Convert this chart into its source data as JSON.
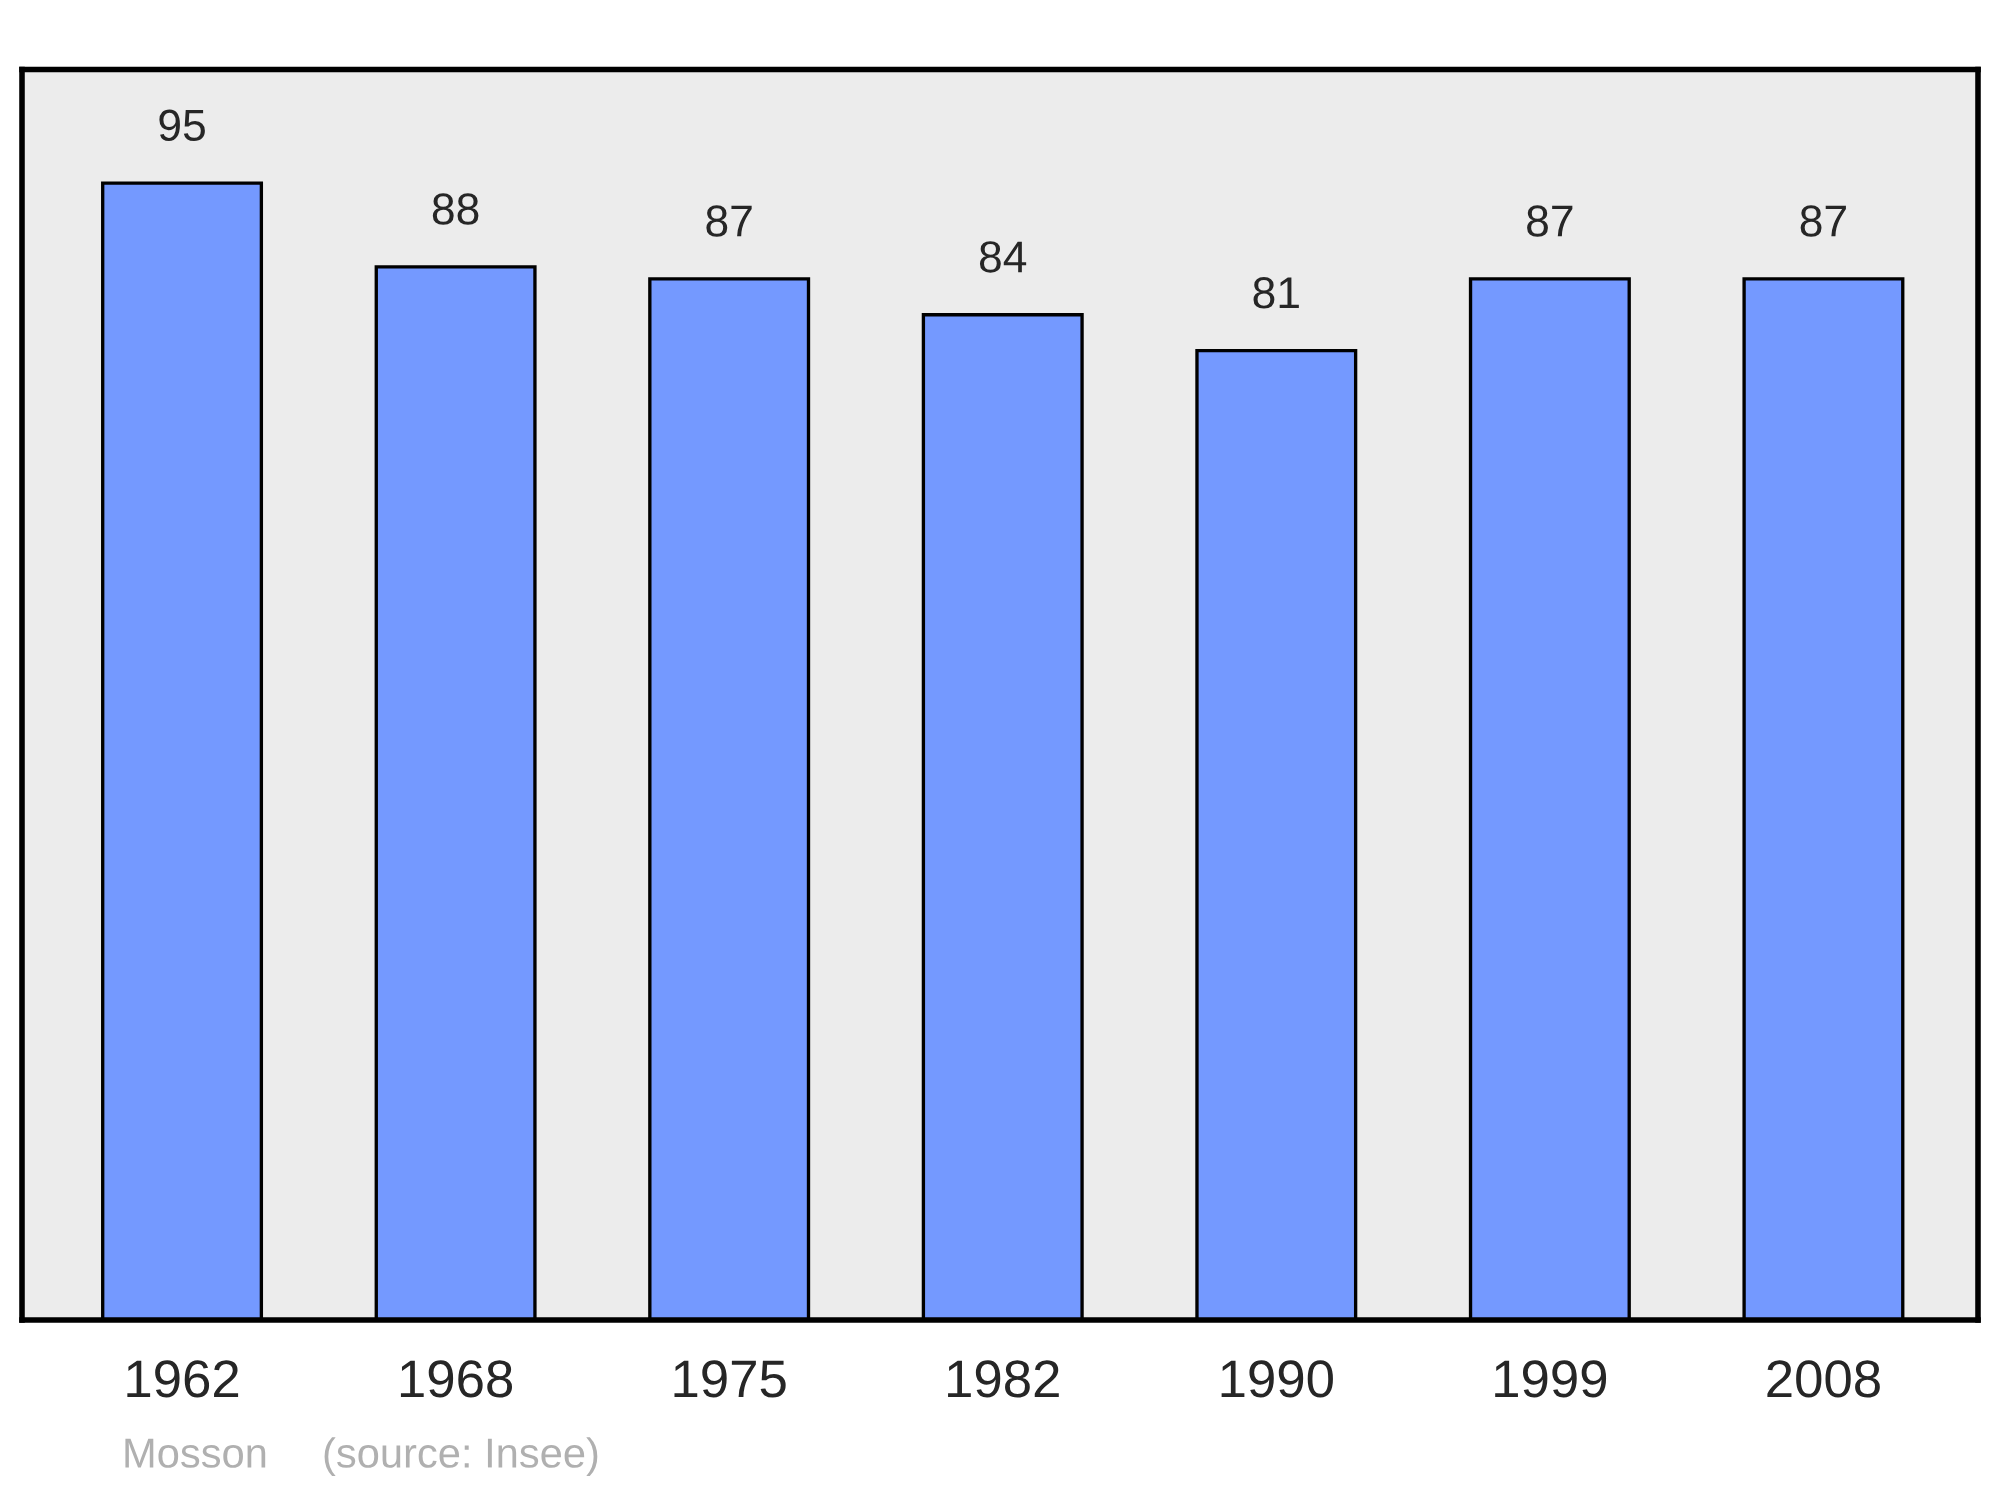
{
  "chart_data": {
    "type": "bar",
    "categories": [
      "1962",
      "1968",
      "1975",
      "1982",
      "1990",
      "1999",
      "2008"
    ],
    "values": [
      95,
      88,
      87,
      84,
      81,
      87,
      87
    ],
    "color": "#7499ff",
    "data_labels": true,
    "ylim": [
      0,
      104.5
    ],
    "grid": false,
    "legend": false,
    "tick_labels": "x",
    "annotations": [
      "Mosson",
      "(source: Insee)"
    ]
  }
}
